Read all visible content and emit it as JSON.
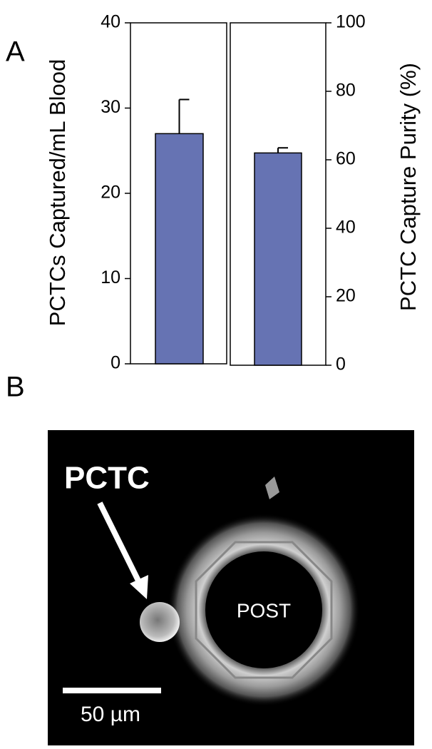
{
  "panels": {
    "a_label": "A",
    "b_label": "B"
  },
  "chart_data": {
    "type": "bar",
    "ylabel": "PCTCs Captured/mL Blood",
    "y2label": "PCTC Capture Purity (%)",
    "ylim": [
      0,
      40
    ],
    "yticks": [
      0,
      10,
      20,
      30,
      40
    ],
    "y2lim": [
      0,
      100
    ],
    "y2ticks": [
      0,
      20,
      40,
      60,
      80,
      100
    ],
    "series": [
      {
        "values": [
          27
        ],
        "errors": [
          4
        ],
        "color": "#6673b3"
      },
      {
        "values": [
          62
        ],
        "errors": [
          1.5
        ],
        "color": "#6673b3",
        "axis": "y2"
      }
    ]
  },
  "image": {
    "arrow_label": "PCTC",
    "post_label": "POST",
    "scale_bar_label": "50 µm"
  }
}
